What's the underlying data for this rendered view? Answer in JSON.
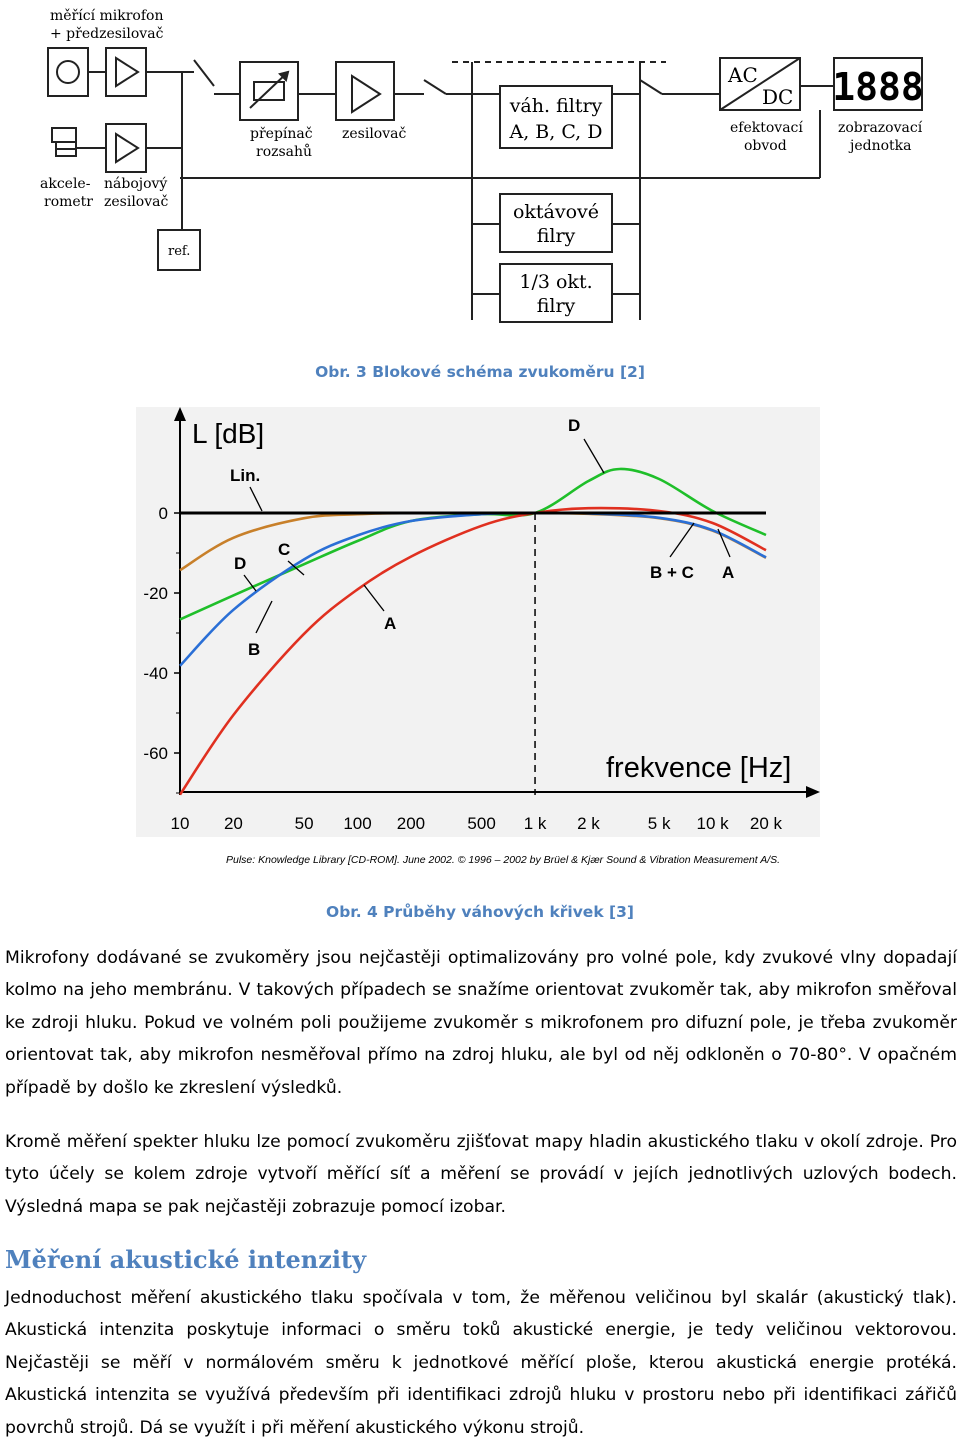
{
  "figure3": {
    "caption": "Obr. 3 Blokové schéma zvukoměru [2]",
    "labels": {
      "microphone_1": "měřící mikrofon",
      "microphone_2": "+ předzesilovač",
      "accelerometer_1": "akcele-",
      "accelerometer_2": "rometr",
      "charge_amp_1": "nábojový",
      "charge_amp_2": "zesilovač",
      "ref": "ref.",
      "range_switch_1": "přepínač",
      "range_switch_2": "rozsahů",
      "amplifier": "zesilovač",
      "weight_filters_1": "váh. filtry",
      "weight_filters_2": "A, B, C, D",
      "octave_filters_1": "oktávové",
      "octave_filters_2": "filry",
      "third_octave_1": "1/3 okt.",
      "third_octave_2": "filry",
      "ac": "AC",
      "dc": "DC",
      "rms_1": "efektovací",
      "rms_2": "obvod",
      "display_value": "1888",
      "display_1": "zobrazovací",
      "display_2": "jednotka"
    }
  },
  "figure4": {
    "caption": "Obr. 4 Průběhy váhových křivek [3]",
    "credit": "Pulse: Knowledge Library [CD-ROM]. June 2002. © 1996 – 2002 by Brüel & Kjær Sound & Vibration Measurement A/S."
  },
  "chart_data": {
    "type": "line",
    "ylabel": "L [dB]",
    "xlabel": "frekvence [Hz]",
    "y_ticks": [
      "0",
      "-20",
      "-40",
      "-60"
    ],
    "x_ticks": [
      "10",
      "20",
      "50",
      "100",
      "200",
      "500",
      "1 k",
      "2 k",
      "5 k",
      "10 k",
      "20 k"
    ],
    "x_scale": "log",
    "ylim": [
      -72,
      27
    ],
    "annotations": {
      "lin": "Lin.",
      "d_top": "D",
      "c": "C",
      "d_left": "D",
      "b": "B",
      "a_mid": "A",
      "bc": "B + C",
      "a_right": "A"
    },
    "colors": {
      "Lin": "#000000",
      "A": "#e03020",
      "B": "#2a6fd6",
      "C": "#c8802a",
      "D": "#1fbf2a"
    },
    "series": [
      {
        "name": "Lin.",
        "x": [
          10,
          20000
        ],
        "y": [
          0,
          0
        ]
      },
      {
        "name": "A",
        "x": [
          10,
          20,
          50,
          100,
          200,
          500,
          1000,
          2000,
          5000,
          10000,
          20000
        ],
        "y": [
          -70.4,
          -50.5,
          -30.2,
          -19.1,
          -10.9,
          -3.2,
          0,
          1.2,
          0.5,
          -2.5,
          -9.3
        ]
      },
      {
        "name": "B",
        "x": [
          10,
          20,
          50,
          100,
          200,
          500,
          1000,
          2000,
          5000,
          10000,
          20000
        ],
        "y": [
          -38.2,
          -24.2,
          -11.6,
          -5.6,
          -2.0,
          -0.3,
          0,
          -0.1,
          -1.2,
          -4.3,
          -11.1
        ]
      },
      {
        "name": "C",
        "x": [
          10,
          20,
          50,
          100,
          200,
          500,
          1000,
          2000,
          5000,
          10000,
          20000
        ],
        "y": [
          -14.3,
          -6.2,
          -1.3,
          -0.3,
          0,
          0,
          0,
          -0.2,
          -1.3,
          -4.4,
          -11.2
        ]
      },
      {
        "name": "D",
        "x": [
          10,
          20,
          50,
          100,
          200,
          500,
          1000,
          2000,
          3000,
          5000,
          10000,
          20000
        ],
        "y": [
          -26.6,
          -20.6,
          -12.8,
          -7.0,
          -2.0,
          -0.3,
          0,
          8.0,
          11.0,
          8.5,
          0.5,
          -5.5
        ]
      }
    ]
  },
  "body": {
    "p1": "Mikrofony dodávané se zvukoměry jsou nejčastěji optimalizovány pro volné pole, kdy zvukové vlny dopadají kolmo na jeho membránu. V takových případech se snažíme orientovat zvukoměr tak, aby mikrofon směřoval ke zdroji hluku. Pokud ve volném poli použijeme zvukoměr s mikrofonem pro difuzní pole, je třeba zvukoměr orientovat tak, aby mikrofon nesměřoval přímo na zdroj hluku, ale byl od něj odkloněn o 70-80°. V opačném případě by došlo ke zkreslení výsledků.",
    "p2": "Kromě měření spekter hluku lze pomocí zvukoměru zjišťovat mapy hladin akustického tlaku v okolí zdroje. Pro tyto účely se kolem zdroje vytvoří měřící síť a měření se provádí v jejích jednotlivých uzlových bodech. Výsledná mapa se pak nejčastěji zobrazuje pomocí izobar.",
    "heading": "Měření akustické intenzity",
    "p3": "Jednoduchost měření akustického tlaku spočívala v tom, že měřenou veličinou byl skalár (akustický tlak). Akustická intenzita poskytuje informaci o směru toků akustické energie, je tedy veličinou vektorovou. Nejčastěji se měří v normálovém směru k jednotkové měřící ploše, kterou akustická energie protéká. Akustická intenzita se využívá především při identifikaci zdrojů hluku v prostoru nebo při identifikaci zářičů povrchů strojů. Dá se využít i při měření akustického výkonu strojů."
  }
}
